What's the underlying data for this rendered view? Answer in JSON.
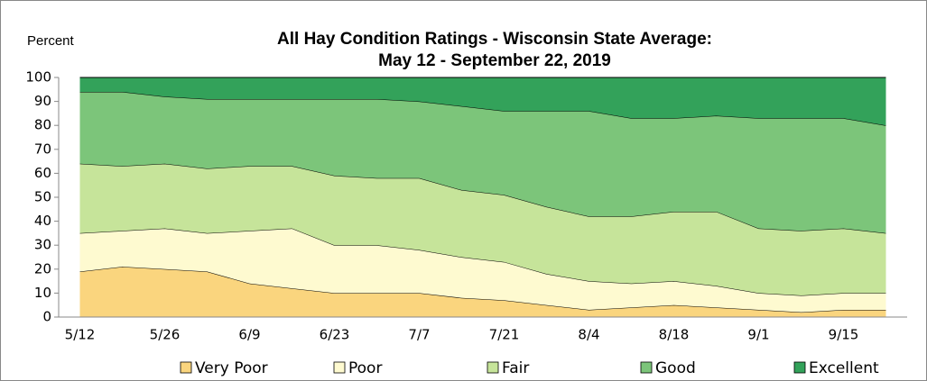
{
  "chart_data": {
    "type": "stacked_area",
    "title": "All Hay Condition Ratings - Wisconsin State Average:",
    "subtitle": "May 12 - September 22, 2019",
    "y_label": "Percent",
    "categories": [
      "5/12",
      null,
      "5/26",
      null,
      "6/9",
      null,
      "6/23",
      null,
      "7/7",
      null,
      "7/21",
      null,
      "8/4",
      null,
      "8/18",
      null,
      "9/1",
      null,
      "9/15",
      null
    ],
    "series": [
      {
        "name": "Very Poor",
        "color": "#fad57e",
        "values": [
          19,
          21,
          20,
          19,
          14,
          12,
          10,
          10,
          10,
          8,
          7,
          5,
          3,
          4,
          5,
          4,
          3,
          2,
          3,
          3
        ]
      },
      {
        "name": "Poor",
        "color": "#fefad0",
        "values": [
          16,
          15,
          17,
          16,
          22,
          25,
          20,
          20,
          18,
          17,
          16,
          13,
          12,
          10,
          10,
          9,
          7,
          7,
          7,
          7
        ]
      },
      {
        "name": "Fair",
        "color": "#c6e49a",
        "values": [
          29,
          27,
          27,
          27,
          27,
          26,
          29,
          28,
          30,
          28,
          28,
          28,
          27,
          28,
          29,
          31,
          27,
          27,
          27,
          25
        ]
      },
      {
        "name": "Good",
        "color": "#7cc57a",
        "values": [
          30,
          31,
          28,
          29,
          28,
          28,
          32,
          33,
          32,
          35,
          35,
          40,
          44,
          41,
          39,
          40,
          46,
          47,
          46,
          45
        ]
      },
      {
        "name": "Excellent",
        "color": "#33a25a",
        "values": [
          6,
          6,
          8,
          9,
          9,
          9,
          9,
          9,
          10,
          12,
          14,
          14,
          14,
          17,
          17,
          16,
          17,
          17,
          17,
          20
        ]
      }
    ],
    "ylim": [
      0,
      100
    ],
    "yticks": [
      0,
      10,
      20,
      30,
      40,
      50,
      60,
      70,
      80,
      90,
      100
    ],
    "legend": "bottom"
  }
}
